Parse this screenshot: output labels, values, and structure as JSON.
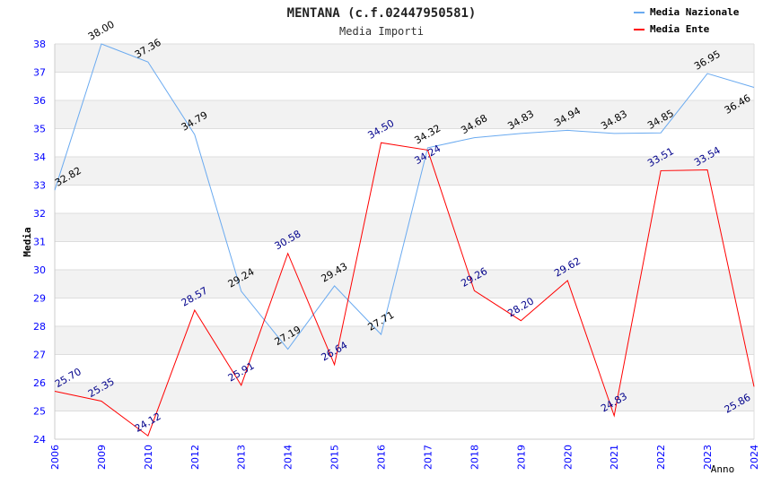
{
  "chart_data": {
    "type": "line",
    "title": "MENTANA (c.f.02447950581)",
    "subtitle": "Media Importi",
    "xlabel": "Anno",
    "ylabel": "Media",
    "ylim": [
      24,
      38
    ],
    "yticks": [
      24,
      25,
      26,
      27,
      28,
      29,
      30,
      31,
      32,
      33,
      34,
      35,
      36,
      37,
      38
    ],
    "categories": [
      "2006",
      "2009",
      "2010",
      "2012",
      "2013",
      "2014",
      "2015",
      "2016",
      "2017",
      "2018",
      "2019",
      "2020",
      "2021",
      "2022",
      "2023",
      "2024"
    ],
    "legend_position": "top-right",
    "series": [
      {
        "name": "Media Nazionale",
        "color": "#6aaaf0",
        "label_color": "#000000",
        "values": [
          32.82,
          38.0,
          37.36,
          34.79,
          29.24,
          27.19,
          29.43,
          27.71,
          34.32,
          34.68,
          34.83,
          34.94,
          34.83,
          34.85,
          36.95,
          36.46
        ]
      },
      {
        "name": "Media Ente",
        "color": "#ff0000",
        "label_color": "#00008b",
        "values": [
          25.7,
          25.35,
          24.12,
          28.57,
          25.91,
          30.58,
          26.64,
          34.5,
          34.24,
          29.26,
          28.2,
          29.62,
          24.83,
          33.51,
          33.54,
          25.86
        ]
      }
    ]
  }
}
